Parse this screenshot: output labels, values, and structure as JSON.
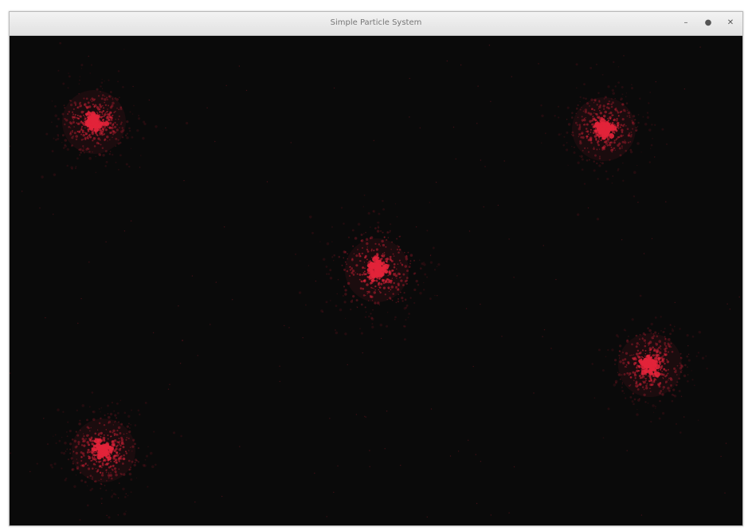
{
  "window": {
    "title": "Simple Particle System",
    "controls": [
      {
        "name": "minimize-button",
        "glyph": "–"
      },
      {
        "name": "maximize-button",
        "glyph": "●"
      },
      {
        "name": "close-button",
        "glyph": "✕"
      }
    ]
  },
  "scene": {
    "background": "#0a0a0a",
    "particle_color": "#e2233a",
    "emitter_count": 5
  }
}
